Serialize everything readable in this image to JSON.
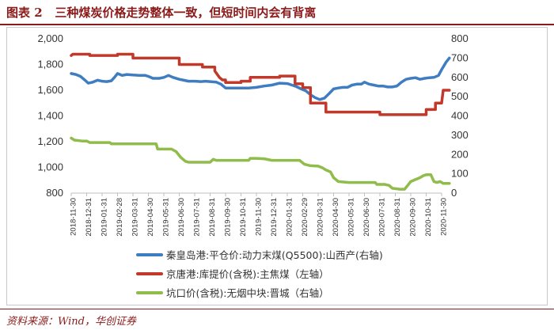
{
  "header": {
    "label": "图表 2",
    "title": "三种煤炭价格走势整体一致，但短时间内会有背离"
  },
  "source": "资料来源：Wind，华创证券",
  "colors": {
    "blue": "#3f7dc2",
    "red": "#c0392b",
    "green": "#8fbc4a",
    "accent": "#8b1a1a"
  },
  "chart_data": {
    "type": "line",
    "x_ticks": [
      "2018-11-30",
      "2018-12-31",
      "2019-01-31",
      "2019-02-28",
      "2019-03-31",
      "2019-04-30",
      "2019-05-31",
      "2019-06-30",
      "2019-07-31",
      "2019-08-31",
      "2019-09-30",
      "2019-10-31",
      "2019-11-30",
      "2019-12-31",
      "2020-01-31",
      "2020-02-29",
      "2020-03-31",
      "2020-04-30",
      "2020-05-31",
      "2020-06-30",
      "2020-07-31",
      "2020-08-31",
      "2020-09-30",
      "2020-10-31",
      "2020-11-30"
    ],
    "y_left": {
      "min": 800,
      "max": 2000,
      "ticks": [
        "800",
        "1,000",
        "1,200",
        "1,400",
        "1,600",
        "1,800",
        "2,000"
      ]
    },
    "y_right": {
      "min": 0,
      "max": 800,
      "ticks": [
        "0",
        "100",
        "200",
        "300",
        "400",
        "500",
        "600",
        "700",
        "800"
      ]
    },
    "grid": false,
    "legend_placement": "bottom",
    "series": [
      {
        "name": "秦皇岛港:平仓价:动力末煤(Q5500):山西产(右轴)",
        "axis": "right",
        "color": "#3f7dc2",
        "points": [
          [
            0,
            620
          ],
          [
            0.3,
            615
          ],
          [
            0.6,
            605
          ],
          [
            0.9,
            585
          ],
          [
            1.1,
            570
          ],
          [
            1.4,
            575
          ],
          [
            1.7,
            585
          ],
          [
            2,
            580
          ],
          [
            2.3,
            578
          ],
          [
            2.6,
            582
          ],
          [
            2.8,
            600
          ],
          [
            3,
            620
          ],
          [
            3.3,
            610
          ],
          [
            3.6,
            615
          ],
          [
            4,
            612
          ],
          [
            4.4,
            610
          ],
          [
            4.8,
            610
          ],
          [
            5,
            605
          ],
          [
            5.3,
            595
          ],
          [
            5.7,
            595
          ],
          [
            6,
            600
          ],
          [
            6.3,
            610
          ],
          [
            6.6,
            600
          ],
          [
            7,
            590
          ],
          [
            7.3,
            585
          ],
          [
            7.6,
            580
          ],
          [
            8,
            580
          ],
          [
            8.4,
            578
          ],
          [
            8.7,
            580
          ],
          [
            9,
            578
          ],
          [
            9.4,
            575
          ],
          [
            9.7,
            565
          ],
          [
            10,
            545
          ],
          [
            10.5,
            545
          ],
          [
            11,
            545
          ],
          [
            11.5,
            545
          ],
          [
            12,
            548
          ],
          [
            12.5,
            555
          ],
          [
            13,
            560
          ],
          [
            13.5,
            570
          ],
          [
            14,
            568
          ],
          [
            14.3,
            560
          ],
          [
            14.6,
            552
          ],
          [
            14.9,
            540
          ],
          [
            15.2,
            530
          ],
          [
            15.5,
            510
          ],
          [
            15.8,
            495
          ],
          [
            16.1,
            485
          ],
          [
            16.4,
            492
          ],
          [
            16.7,
            515
          ],
          [
            17,
            540
          ],
          [
            17.3,
            545
          ],
          [
            17.6,
            548
          ],
          [
            17.9,
            548
          ],
          [
            18.2,
            560
          ],
          [
            18.5,
            565
          ],
          [
            18.8,
            565
          ],
          [
            19,
            575
          ],
          [
            19.3,
            565
          ],
          [
            19.6,
            560
          ],
          [
            19.9,
            555
          ],
          [
            20.2,
            555
          ],
          [
            20.5,
            550
          ],
          [
            20.8,
            550
          ],
          [
            21.1,
            555
          ],
          [
            21.4,
            575
          ],
          [
            21.7,
            590
          ],
          [
            22,
            595
          ],
          [
            22.3,
            598
          ],
          [
            22.6,
            590
          ],
          [
            22.9,
            595
          ],
          [
            23.2,
            598
          ],
          [
            23.5,
            600
          ],
          [
            23.8,
            610
          ],
          [
            24,
            640
          ],
          [
            24.3,
            680
          ],
          [
            24.5,
            700
          ]
        ]
      },
      {
        "name": "京唐港:库提价(含税):主焦煤（左轴）",
        "axis": "left",
        "color": "#c0392b",
        "points": [
          [
            0,
            1870
          ],
          [
            0.1,
            1880
          ],
          [
            1.2,
            1880
          ],
          [
            1.2,
            1870
          ],
          [
            3,
            1870
          ],
          [
            3,
            1880
          ],
          [
            4,
            1880
          ],
          [
            4,
            1850
          ],
          [
            7,
            1850
          ],
          [
            7,
            1800
          ],
          [
            8.5,
            1800
          ],
          [
            8.5,
            1780
          ],
          [
            9.3,
            1780
          ],
          [
            9.3,
            1750
          ],
          [
            9.6,
            1700
          ],
          [
            9.8,
            1680
          ],
          [
            10,
            1680
          ],
          [
            10,
            1660
          ],
          [
            10.5,
            1660
          ],
          [
            11,
            1660
          ],
          [
            11,
            1670
          ],
          [
            11.6,
            1670
          ],
          [
            11.6,
            1700
          ],
          [
            13.5,
            1700
          ],
          [
            13.5,
            1710
          ],
          [
            14.5,
            1710
          ],
          [
            14.5,
            1650
          ],
          [
            15,
            1650
          ],
          [
            15,
            1620
          ],
          [
            15.5,
            1620
          ],
          [
            15.5,
            1500
          ],
          [
            16.5,
            1500
          ],
          [
            16.5,
            1430
          ],
          [
            20,
            1430
          ],
          [
            20,
            1410
          ],
          [
            23,
            1410
          ],
          [
            23,
            1450
          ],
          [
            23.6,
            1450
          ],
          [
            23.6,
            1500
          ],
          [
            24,
            1500
          ],
          [
            24.1,
            1600
          ],
          [
            24.5,
            1600
          ]
        ]
      },
      {
        "name": "坑口价(含税):无烟中块:晋城（右轴）",
        "axis": "right",
        "color": "#8fbc4a",
        "points": [
          [
            0,
            285
          ],
          [
            0.2,
            275
          ],
          [
            0.7,
            270
          ],
          [
            1,
            270
          ],
          [
            1.2,
            262
          ],
          [
            2.5,
            262
          ],
          [
            2.6,
            255
          ],
          [
            5.5,
            255
          ],
          [
            5.6,
            228
          ],
          [
            6.5,
            228
          ],
          [
            6.8,
            215
          ],
          [
            7.1,
            185
          ],
          [
            7.4,
            165
          ],
          [
            7.6,
            160
          ],
          [
            9,
            160
          ],
          [
            9.2,
            175
          ],
          [
            9.4,
            170
          ],
          [
            10,
            170
          ],
          [
            10.5,
            170
          ],
          [
            11.5,
            170
          ],
          [
            11.6,
            180
          ],
          [
            12,
            180
          ],
          [
            12.5,
            178
          ],
          [
            13,
            170
          ],
          [
            14.5,
            170
          ],
          [
            14.8,
            170
          ],
          [
            15.1,
            150
          ],
          [
            15.5,
            142
          ],
          [
            16,
            140
          ],
          [
            16.3,
            130
          ],
          [
            16.5,
            120
          ],
          [
            16.8,
            110
          ],
          [
            17,
            80
          ],
          [
            17.3,
            60
          ],
          [
            18,
            55
          ],
          [
            19,
            55
          ],
          [
            19.7,
            55
          ],
          [
            19.8,
            45
          ],
          [
            20.3,
            45
          ],
          [
            20.6,
            40
          ],
          [
            20.8,
            25
          ],
          [
            21.3,
            20
          ],
          [
            21.6,
            20
          ],
          [
            21.8,
            40
          ],
          [
            22,
            60
          ],
          [
            22.3,
            70
          ],
          [
            22.6,
            80
          ],
          [
            22.8,
            90
          ],
          [
            23,
            95
          ],
          [
            23.3,
            95
          ],
          [
            23.5,
            60
          ],
          [
            23.7,
            55
          ],
          [
            23.9,
            60
          ],
          [
            24.1,
            50
          ],
          [
            24.5,
            50
          ]
        ]
      }
    ]
  }
}
